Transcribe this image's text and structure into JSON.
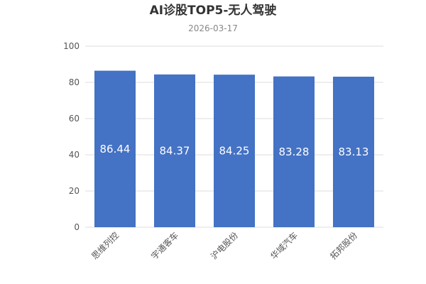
{
  "chart_data": {
    "type": "bar",
    "title": "AI诊股TOP5-无人驾驶",
    "subtitle": "2026-03-17",
    "categories": [
      "思维列控",
      "宇通客车",
      "沪电股份",
      "华域汽车",
      "拓邦股份"
    ],
    "values": [
      86.44,
      84.37,
      84.25,
      83.28,
      83.13
    ],
    "data_labels": [
      "86.44",
      "84.37",
      "84.25",
      "83.28",
      "83.13"
    ],
    "ylim": [
      0,
      100
    ],
    "yticks": [
      0,
      20,
      40,
      60,
      80,
      100
    ],
    "grid": true,
    "bar_color": "#4472c4",
    "grid_color": "#dddddd",
    "xlabel": "",
    "ylabel": ""
  }
}
